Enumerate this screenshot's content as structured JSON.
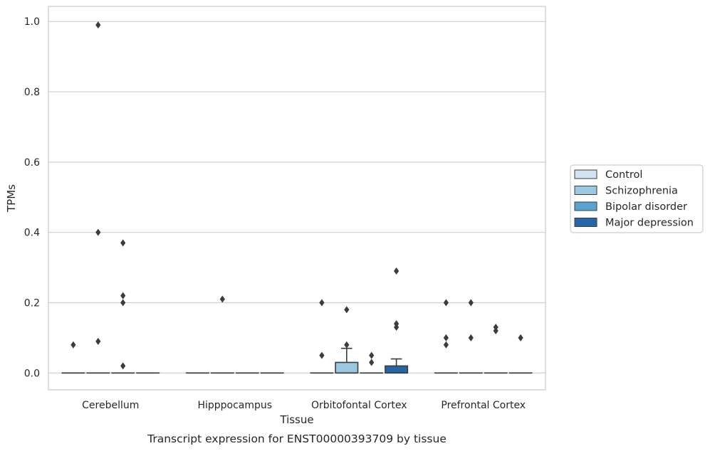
{
  "chart_data": {
    "type": "box",
    "title": "",
    "caption": "Transcript expression for ENST00000393709 by tissue",
    "xlabel": "Tissue",
    "ylabel": "TPMs",
    "ylim": [
      -0.048,
      1.043
    ],
    "yticks": [
      "0.0",
      "0.2",
      "0.4",
      "0.6",
      "0.8",
      "1.0"
    ],
    "ytick_values": [
      0.0,
      0.2,
      0.4,
      0.6,
      0.8,
      1.0
    ],
    "grid": "horizontal",
    "legend_position": "right",
    "categories": [
      "Cerebellum",
      "Hipppocampus",
      "Orbitofontal Cortex",
      "Prefrontal Cortex"
    ],
    "series": [
      {
        "name": "Control",
        "color": "#d2e3f3",
        "boxes": [
          {
            "min": 0,
            "q1": 0,
            "median": 0,
            "q3": 0,
            "max": 0,
            "outliers": [
              0.08
            ]
          },
          {
            "min": 0,
            "q1": 0,
            "median": 0,
            "q3": 0,
            "max": 0,
            "outliers": []
          },
          {
            "min": 0,
            "q1": 0,
            "median": 0,
            "q3": 0,
            "max": 0,
            "outliers": [
              0.2,
              0.05
            ]
          },
          {
            "min": 0,
            "q1": 0,
            "median": 0,
            "q3": 0,
            "max": 0,
            "outliers": [
              0.2,
              0.1,
              0.08
            ]
          }
        ]
      },
      {
        "name": "Schizophrenia",
        "color": "#9ac8e0",
        "boxes": [
          {
            "min": 0,
            "q1": 0,
            "median": 0,
            "q3": 0,
            "max": 0,
            "outliers": [
              0.99,
              0.4,
              0.09
            ]
          },
          {
            "min": 0,
            "q1": 0,
            "median": 0,
            "q3": 0,
            "max": 0,
            "outliers": [
              0.21
            ]
          },
          {
            "min": 0,
            "q1": 0,
            "median": 0,
            "q3": 0.03,
            "max": 0.07,
            "outliers": [
              0.18,
              0.08
            ]
          },
          {
            "min": 0,
            "q1": 0,
            "median": 0,
            "q3": 0,
            "max": 0,
            "outliers": [
              0.2,
              0.1
            ]
          }
        ]
      },
      {
        "name": "Bipolar disorder",
        "color": "#5ba3cf",
        "boxes": [
          {
            "min": 0,
            "q1": 0,
            "median": 0,
            "q3": 0,
            "max": 0,
            "outliers": [
              0.37,
              0.22,
              0.02,
              0.2
            ]
          },
          {
            "min": 0,
            "q1": 0,
            "median": 0,
            "q3": 0,
            "max": 0,
            "outliers": []
          },
          {
            "min": 0,
            "q1": 0,
            "median": 0,
            "q3": 0,
            "max": 0,
            "outliers": [
              0.05,
              0.03
            ]
          },
          {
            "min": 0,
            "q1": 0,
            "median": 0,
            "q3": 0,
            "max": 0,
            "outliers": [
              0.13,
              0.12
            ]
          }
        ]
      },
      {
        "name": "Major depression",
        "color": "#2666a6",
        "boxes": [
          {
            "min": 0,
            "q1": 0,
            "median": 0,
            "q3": 0,
            "max": 0,
            "outliers": []
          },
          {
            "min": 0,
            "q1": 0,
            "median": 0,
            "q3": 0,
            "max": 0,
            "outliers": []
          },
          {
            "min": 0,
            "q1": 0,
            "median": 0,
            "q3": 0.02,
            "max": 0.04,
            "outliers": [
              0.29,
              0.14,
              0.13
            ]
          },
          {
            "min": 0,
            "q1": 0,
            "median": 0,
            "q3": 0,
            "max": 0,
            "outliers": [
              0.1
            ]
          }
        ]
      }
    ]
  }
}
